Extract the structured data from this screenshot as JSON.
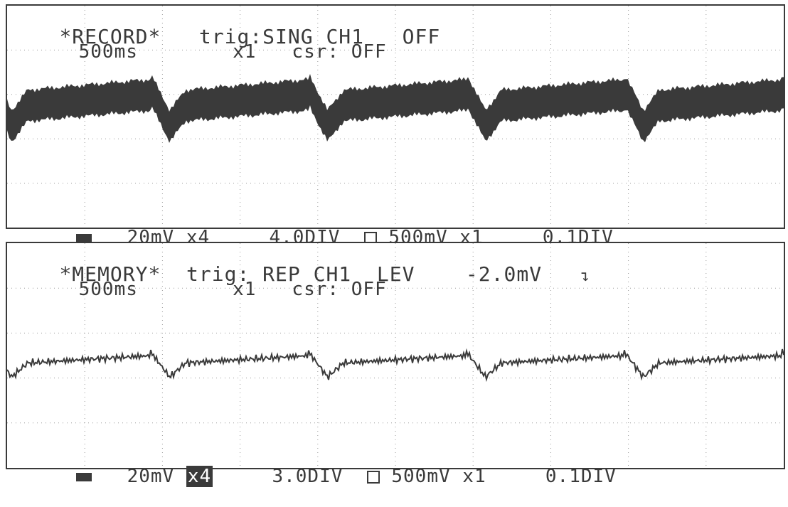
{
  "record": {
    "mode": "*RECORD*",
    "trig": "trig:SING CH1",
    "trig_state": "OFF",
    "timebase": "500ms",
    "zoom": "x1",
    "cursor": "csr: OFF",
    "ch1_scale": "20mV",
    "ch1_gain": "x4",
    "ch1_pos": "4.0DIV",
    "ch2_scale": "500mV",
    "ch2_gain": "x1",
    "ch2_pos": "0.1DIV"
  },
  "memory": {
    "mode": "*MEMORY*",
    "trig": "trig: REP CH1",
    "trig_level": "LEV",
    "level_value": "-2.0mV",
    "slope_icon": "falling-edge-icon",
    "timebase": "500ms",
    "zoom": "x1",
    "cursor": "csr: OFF",
    "ch1_scale": "20mV",
    "ch1_gain": "x4",
    "ch1_pos": "3.0DIV",
    "ch2_scale": "500mV",
    "ch2_gain": "x1",
    "ch2_pos": "0.1DIV"
  },
  "colors": {
    "ink": "#3a3a3a",
    "grid": "#9a9a9a",
    "paper": "#ffffff"
  }
}
